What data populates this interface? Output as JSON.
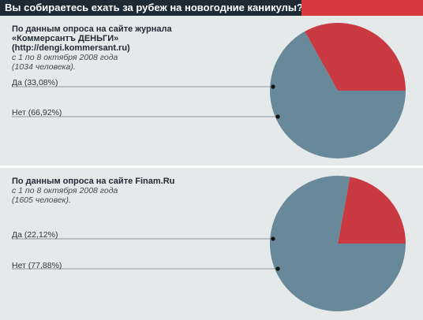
{
  "header": {
    "title": "Вы собираетесь ехать за рубеж на новогодние каникулы?"
  },
  "colors": {
    "yes": "#c93942",
    "no": "#67899a",
    "header_bg": "#1c2b35",
    "accent": "#d63a3d"
  },
  "panels": [
    {
      "title_lines": [
        "По данным опроса на сайте журнала",
        "«Коммерсантъ ДЕНЬГИ»",
        "(http://dengi.kommersant.ru)"
      ],
      "note_lines": [
        "с 1 по 8 октября 2008 года",
        "(1034 человека)."
      ],
      "labels": [
        "Да (33,08%)",
        "Нет (66,92%)"
      ]
    },
    {
      "title_lines": [
        "По данным опроса на сайте Finam.Ru"
      ],
      "note_lines": [
        "с 1 по 8 октября 2008 года",
        "(1605 человек)."
      ],
      "labels": [
        "Да (22,12%)",
        "Нет (77,88%)"
      ]
    }
  ],
  "chart_data": [
    {
      "type": "pie",
      "series": [
        {
          "name": "Да",
          "value": 33.08
        },
        {
          "name": "Нет",
          "value": 66.92
        }
      ]
    },
    {
      "type": "pie",
      "series": [
        {
          "name": "Да",
          "value": 22.12
        },
        {
          "name": "Нет",
          "value": 77.88
        }
      ]
    }
  ]
}
